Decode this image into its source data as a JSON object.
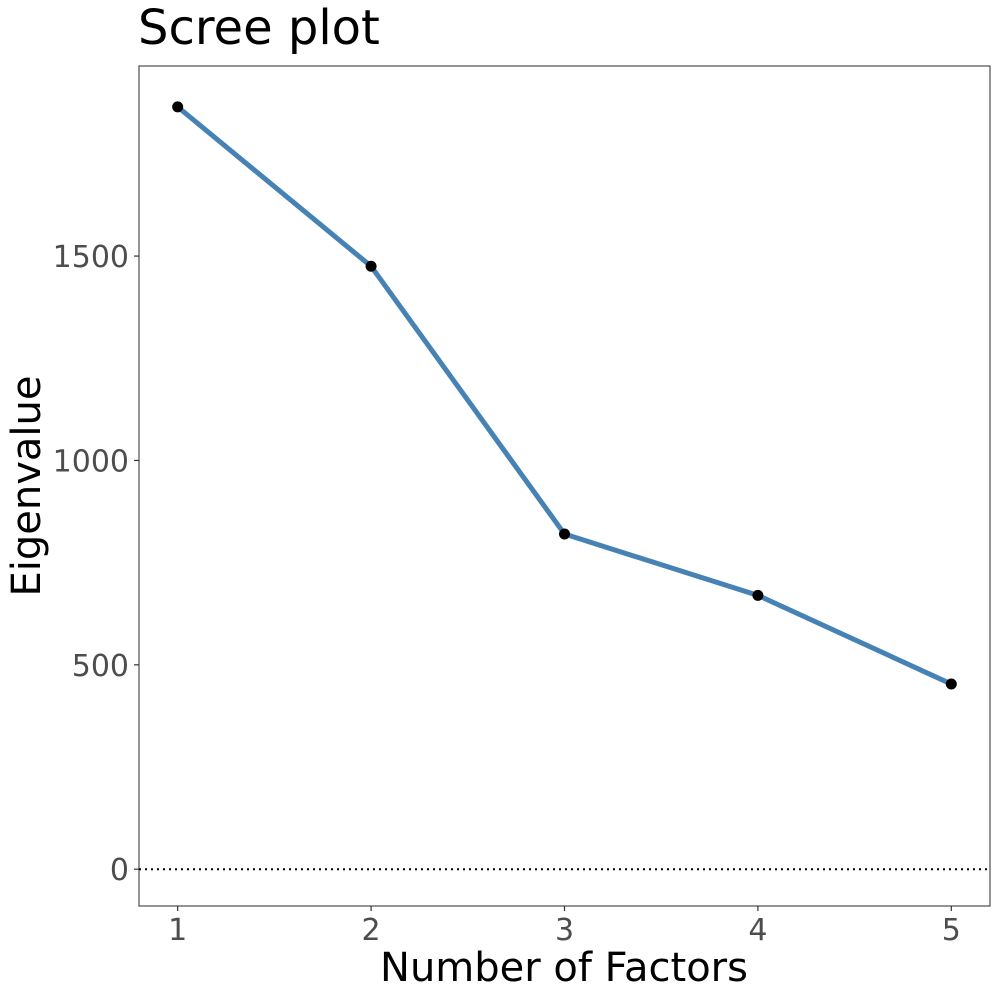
{
  "chart_data": {
    "type": "line",
    "title": "Scree plot",
    "xlabel": "Number of Factors",
    "ylabel": "Eigenvalue",
    "x": [
      1,
      2,
      3,
      4,
      5
    ],
    "xticks": [
      1,
      2,
      3,
      4,
      5
    ],
    "yticks": [
      0,
      500,
      1000,
      1500
    ],
    "xlim": [
      0.8,
      5.2
    ],
    "ylim": [
      -90,
      1965
    ],
    "series": [
      {
        "values": [
          1865,
          1475,
          820,
          670,
          453
        ]
      }
    ],
    "reference_line": {
      "y": 0,
      "style": "dotted"
    },
    "grid": false,
    "legend": "none",
    "colors": {
      "line": "#4682b4",
      "points": "#000000",
      "panel_border": "#4d4d4d",
      "tick_label": "#4d4d4d"
    }
  }
}
